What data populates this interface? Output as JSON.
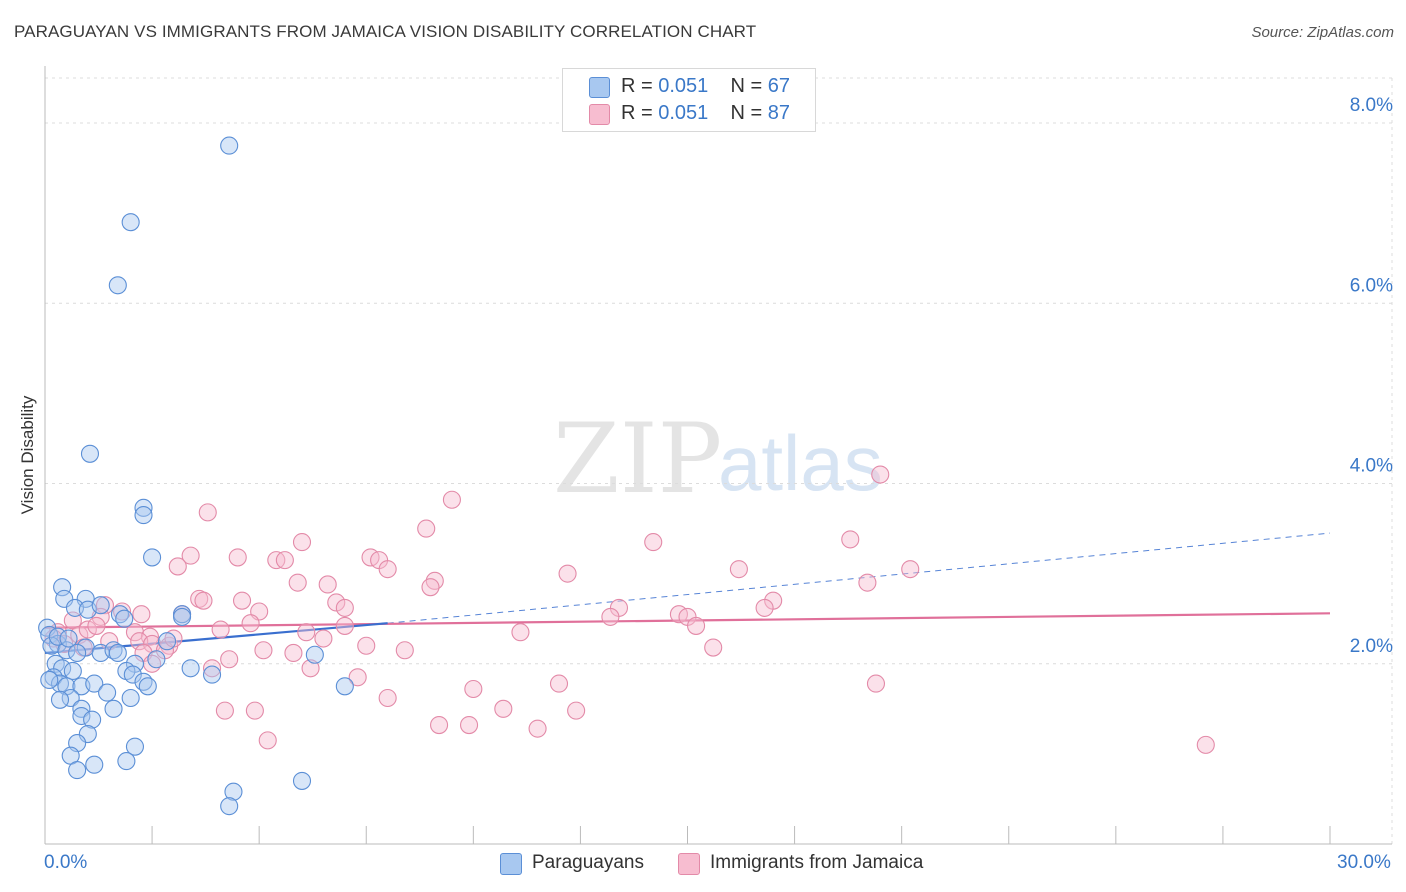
{
  "header": {
    "title": "PARAGUAYAN VS IMMIGRANTS FROM JAMAICA VISION DISABILITY CORRELATION CHART",
    "source": "Source: ZipAtlas.com"
  },
  "watermark": {
    "part1": "ZIP",
    "part2": "atlas"
  },
  "legend_top": {
    "rows": [
      {
        "r_label": "R = ",
        "r_value": "0.051",
        "n_label": "N = ",
        "n_value": "67"
      },
      {
        "r_label": "R = ",
        "r_value": "0.051",
        "n_label": "N = ",
        "n_value": "87"
      }
    ]
  },
  "legend_bottom": {
    "items": [
      {
        "label": "Paraguayans"
      },
      {
        "label": "Immigrants from Jamaica"
      }
    ]
  },
  "colors": {
    "blue_fill": "#a8c8f0",
    "blue_stroke": "#5b8fd6",
    "blue_line": "#3a6fcf",
    "pink_fill": "#f7bdd0",
    "pink_stroke": "#e38aa8",
    "pink_line": "#e0709a",
    "axis_label": "#3a78c8"
  },
  "chart_data": {
    "type": "scatter",
    "title": "PARAGUAYAN VS IMMIGRANTS FROM JAMAICA VISION DISABILITY CORRELATION CHART",
    "xlabel": "",
    "ylabel": "Vision Disability",
    "xlim": [
      0,
      30
    ],
    "ylim": [
      0,
      8.5
    ],
    "x_tick_labels": [
      "0.0%",
      "30.0%"
    ],
    "y_ticks": [
      2,
      4,
      6,
      8
    ],
    "y_tick_labels": [
      "2.0%",
      "4.0%",
      "6.0%",
      "8.0%"
    ],
    "grid": true,
    "series": [
      {
        "name": "Paraguayans",
        "R": 0.051,
        "N": 67,
        "trend": {
          "solid": [
            [
              0,
              2.12
            ],
            [
              8,
              2.45
            ]
          ],
          "dashed": [
            [
              8,
              2.45
            ],
            [
              30,
              3.45
            ]
          ]
        },
        "points": [
          [
            4.3,
            7.75
          ],
          [
            2.0,
            6.9
          ],
          [
            1.7,
            6.2
          ],
          [
            1.05,
            4.33
          ],
          [
            2.3,
            3.73
          ],
          [
            2.3,
            3.65
          ],
          [
            2.5,
            3.18
          ],
          [
            0.4,
            2.85
          ],
          [
            0.45,
            2.72
          ],
          [
            0.95,
            2.72
          ],
          [
            0.7,
            2.62
          ],
          [
            1.0,
            2.6
          ],
          [
            1.3,
            2.65
          ],
          [
            1.75,
            2.55
          ],
          [
            1.85,
            2.5
          ],
          [
            3.2,
            2.55
          ],
          [
            3.2,
            2.52
          ],
          [
            0.05,
            2.4
          ],
          [
            0.1,
            2.32
          ],
          [
            0.3,
            2.22
          ],
          [
            0.15,
            2.2
          ],
          [
            0.5,
            2.15
          ],
          [
            0.95,
            2.18
          ],
          [
            1.3,
            2.12
          ],
          [
            1.6,
            2.15
          ],
          [
            1.7,
            2.12
          ],
          [
            0.75,
            2.12
          ],
          [
            2.1,
            2.0
          ],
          [
            2.6,
            2.05
          ],
          [
            0.25,
            2.0
          ],
          [
            0.4,
            1.95
          ],
          [
            0.65,
            1.92
          ],
          [
            1.9,
            1.92
          ],
          [
            2.05,
            1.88
          ],
          [
            3.4,
            1.95
          ],
          [
            3.9,
            1.88
          ],
          [
            0.2,
            1.85
          ],
          [
            0.35,
            1.78
          ],
          [
            0.5,
            1.75
          ],
          [
            0.85,
            1.75
          ],
          [
            1.15,
            1.78
          ],
          [
            2.3,
            1.8
          ],
          [
            2.4,
            1.75
          ],
          [
            6.3,
            2.1
          ],
          [
            7.0,
            1.75
          ],
          [
            0.6,
            1.62
          ],
          [
            0.35,
            1.6
          ],
          [
            1.45,
            1.68
          ],
          [
            2.0,
            1.62
          ],
          [
            0.85,
            1.5
          ],
          [
            1.6,
            1.5
          ],
          [
            0.85,
            1.42
          ],
          [
            1.1,
            1.38
          ],
          [
            1.0,
            1.22
          ],
          [
            0.75,
            1.12
          ],
          [
            2.1,
            1.08
          ],
          [
            0.6,
            0.98
          ],
          [
            1.15,
            0.88
          ],
          [
            1.9,
            0.92
          ],
          [
            0.75,
            0.82
          ],
          [
            6.0,
            0.7
          ],
          [
            4.4,
            0.58
          ],
          [
            4.3,
            0.42
          ],
          [
            0.3,
            2.3
          ],
          [
            0.55,
            2.28
          ],
          [
            2.85,
            2.25
          ],
          [
            0.1,
            1.82
          ]
        ]
      },
      {
        "name": "Immigrants from Jamaica",
        "R": 0.051,
        "N": 87,
        "trend": {
          "solid": [
            [
              0,
              2.4
            ],
            [
              30,
              2.56
            ]
          ]
        },
        "points": [
          [
            19.5,
            4.1
          ],
          [
            9.5,
            3.82
          ],
          [
            3.8,
            3.68
          ],
          [
            8.9,
            3.5
          ],
          [
            6.0,
            3.35
          ],
          [
            14.2,
            3.35
          ],
          [
            18.8,
            3.38
          ],
          [
            3.4,
            3.2
          ],
          [
            4.5,
            3.18
          ],
          [
            5.4,
            3.15
          ],
          [
            5.6,
            3.15
          ],
          [
            7.6,
            3.18
          ],
          [
            7.8,
            3.15
          ],
          [
            3.1,
            3.08
          ],
          [
            8.0,
            3.05
          ],
          [
            12.2,
            3.0
          ],
          [
            16.2,
            3.05
          ],
          [
            20.2,
            3.05
          ],
          [
            5.9,
            2.9
          ],
          [
            6.6,
            2.88
          ],
          [
            9.1,
            2.92
          ],
          [
            9.0,
            2.85
          ],
          [
            19.2,
            2.9
          ],
          [
            3.6,
            2.72
          ],
          [
            3.7,
            2.7
          ],
          [
            4.6,
            2.7
          ],
          [
            6.8,
            2.68
          ],
          [
            7.0,
            2.62
          ],
          [
            17.0,
            2.7
          ],
          [
            1.4,
            2.65
          ],
          [
            1.8,
            2.58
          ],
          [
            5.0,
            2.58
          ],
          [
            13.4,
            2.62
          ],
          [
            14.8,
            2.55
          ],
          [
            16.8,
            2.62
          ],
          [
            0.65,
            2.48
          ],
          [
            1.3,
            2.52
          ],
          [
            2.25,
            2.55
          ],
          [
            3.2,
            2.55
          ],
          [
            4.8,
            2.45
          ],
          [
            7.0,
            2.42
          ],
          [
            13.2,
            2.52
          ],
          [
            15.0,
            2.52
          ],
          [
            15.2,
            2.42
          ],
          [
            0.3,
            2.35
          ],
          [
            0.8,
            2.32
          ],
          [
            1.0,
            2.38
          ],
          [
            2.1,
            2.35
          ],
          [
            2.45,
            2.3
          ],
          [
            4.1,
            2.38
          ],
          [
            6.1,
            2.35
          ],
          [
            6.5,
            2.28
          ],
          [
            11.1,
            2.35
          ],
          [
            0.2,
            2.28
          ],
          [
            0.45,
            2.22
          ],
          [
            1.5,
            2.25
          ],
          [
            2.2,
            2.25
          ],
          [
            2.5,
            2.22
          ],
          [
            2.9,
            2.2
          ],
          [
            7.5,
            2.2
          ],
          [
            8.4,
            2.15
          ],
          [
            15.6,
            2.18
          ],
          [
            2.3,
            2.12
          ],
          [
            2.8,
            2.15
          ],
          [
            5.1,
            2.15
          ],
          [
            5.8,
            2.12
          ],
          [
            4.3,
            2.05
          ],
          [
            2.5,
            2.0
          ],
          [
            3.9,
            1.95
          ],
          [
            6.2,
            1.95
          ],
          [
            7.3,
            1.85
          ],
          [
            12.0,
            1.78
          ],
          [
            19.4,
            1.78
          ],
          [
            10.0,
            1.72
          ],
          [
            8.0,
            1.62
          ],
          [
            10.7,
            1.5
          ],
          [
            4.2,
            1.48
          ],
          [
            4.9,
            1.48
          ],
          [
            12.4,
            1.48
          ],
          [
            9.2,
            1.32
          ],
          [
            9.9,
            1.32
          ],
          [
            11.5,
            1.28
          ],
          [
            5.2,
            1.15
          ],
          [
            27.1,
            1.1
          ],
          [
            1.2,
            2.42
          ],
          [
            3.0,
            2.28
          ],
          [
            0.9,
            2.18
          ]
        ]
      }
    ]
  }
}
